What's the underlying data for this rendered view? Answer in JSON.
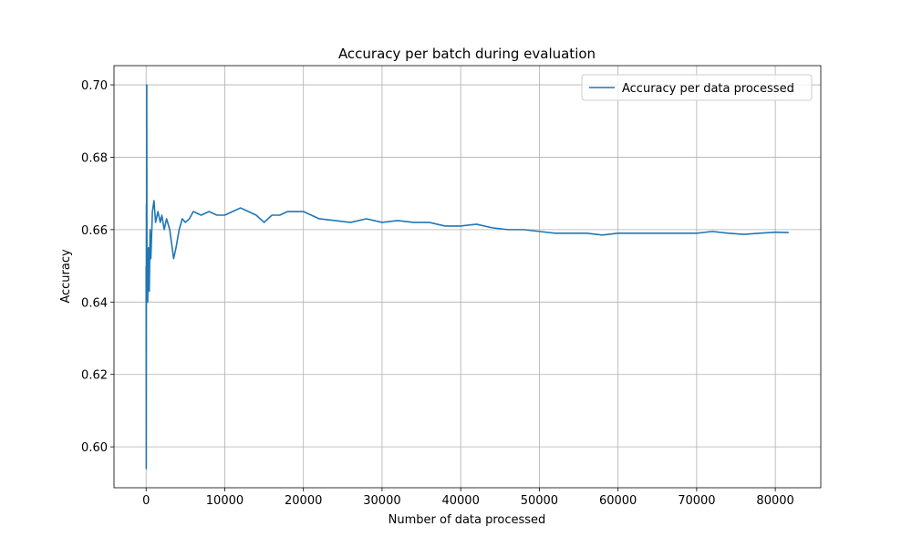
{
  "chart_data": {
    "type": "line",
    "title": "Accuracy per batch during evaluation",
    "x_label": "Number of data processed",
    "y_label": "Accuracy",
    "x": [
      0,
      20,
      40,
      60,
      80,
      100,
      150,
      200,
      300,
      400,
      500,
      600,
      800,
      1000,
      1200,
      1500,
      1800,
      2000,
      2300,
      2600,
      3000,
      3500,
      3800,
      4200,
      4600,
      5000,
      5500,
      6000,
      7000,
      8000,
      9000,
      10000,
      11000,
      12000,
      13000,
      14000,
      15000,
      16000,
      17000,
      18000,
      20000,
      22000,
      24000,
      26000,
      28000,
      30000,
      32000,
      34000,
      36000,
      38000,
      40000,
      42000,
      44000,
      46000,
      48000,
      50000,
      52000,
      54000,
      56000,
      58000,
      60000,
      62000,
      64000,
      66000,
      68000,
      70000,
      72000,
      74000,
      76000,
      78000,
      80000,
      81700
    ],
    "series": [
      {
        "name": "Accuracy per data processed",
        "color": "#1f77b4",
        "values": [
          0.65,
          0.594,
          0.667,
          0.64,
          0.7,
          0.655,
          0.645,
          0.64,
          0.655,
          0.643,
          0.66,
          0.652,
          0.665,
          0.668,
          0.662,
          0.665,
          0.662,
          0.664,
          0.66,
          0.663,
          0.66,
          0.652,
          0.655,
          0.66,
          0.663,
          0.662,
          0.663,
          0.665,
          0.664,
          0.665,
          0.664,
          0.664,
          0.665,
          0.666,
          0.665,
          0.664,
          0.662,
          0.664,
          0.664,
          0.665,
          0.665,
          0.663,
          0.6625,
          0.662,
          0.663,
          0.662,
          0.6625,
          0.662,
          0.662,
          0.661,
          0.661,
          0.6615,
          0.6605,
          0.66,
          0.66,
          0.6595,
          0.659,
          0.659,
          0.659,
          0.6585,
          0.659,
          0.659,
          0.659,
          0.659,
          0.659,
          0.659,
          0.6595,
          0.659,
          0.6587,
          0.659,
          0.6593,
          0.6592
        ]
      }
    ],
    "xlim": [
      -4085,
      85785
    ],
    "xticks": [
      0,
      10000,
      20000,
      30000,
      40000,
      50000,
      60000,
      70000,
      80000
    ],
    "ylim": [
      0.5887,
      0.7053
    ],
    "yticks": [
      {
        "value": 0.6,
        "label": "0.60"
      },
      {
        "value": 0.62,
        "label": "0.62"
      },
      {
        "value": 0.64,
        "label": "0.64"
      },
      {
        "value": 0.66,
        "label": "0.66"
      },
      {
        "value": 0.68,
        "label": "0.68"
      },
      {
        "value": 0.7,
        "label": "0.70"
      }
    ],
    "grid": true,
    "legend": "upper-right"
  }
}
